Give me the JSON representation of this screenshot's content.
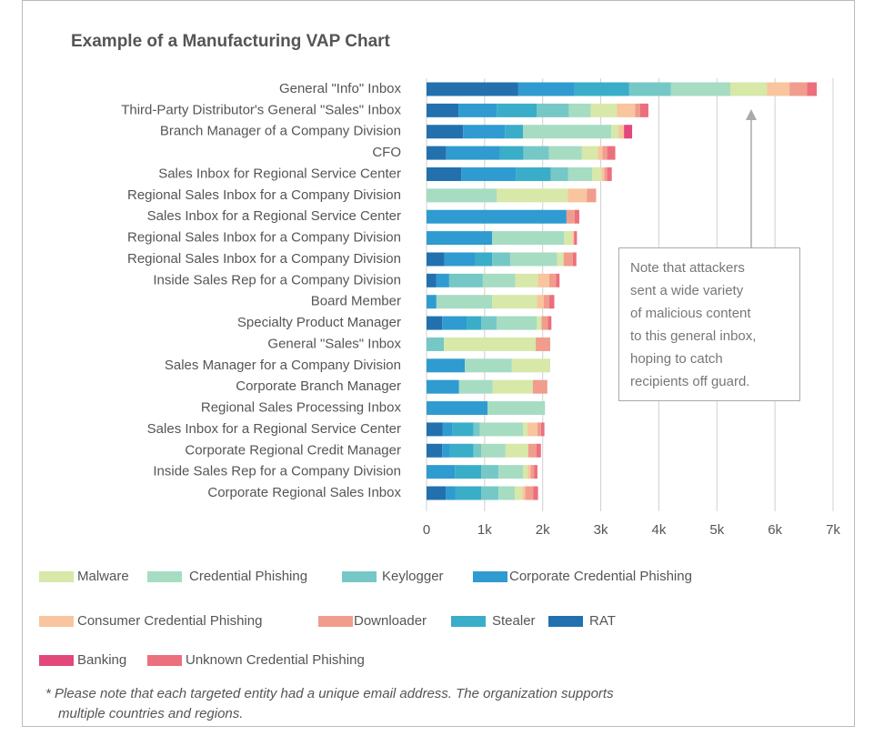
{
  "chart_data": {
    "type": "stacked_barh",
    "title": "Example of a Manufacturing VAP Chart",
    "categories": [
      "General \"Info\" Inbox",
      "Third-Party Distributor's General \"Sales\" Inbox",
      "Branch Manager of a Company Division",
      "CFO",
      "Sales Inbox for Regional Service Center",
      "Regional Sales Inbox for a Company Division",
      "Sales Inbox for a Regional Service Center",
      "Regional Sales Inbox for a Company Division",
      "Regional Sales Inbox for a Company Division",
      "Inside Sales Rep for a Company Division",
      "Board Member",
      "Specialty Product Manager",
      "General \"Sales\" Inbox",
      "Sales Manager for a Company Division",
      "Corporate Branch Manager",
      "Regional Sales Processing Inbox",
      "Sales Inbox for a Regional Service Center",
      "Corporate Regional Credit Manager",
      "Inside Sales Rep for a Company Division",
      "Corporate Regional Sales Inbox"
    ],
    "series": [
      {
        "name": "RAT",
        "color": "#2271ae",
        "values": [
          1580,
          550,
          630,
          340,
          600,
          0,
          0,
          0,
          310,
          170,
          0,
          270,
          0,
          0,
          0,
          0,
          280,
          270,
          0,
          330
        ]
      },
      {
        "name": "Corporate Credential Phishing",
        "color": "#2f9bd0",
        "values": [
          970,
          660,
          720,
          920,
          940,
          0,
          2410,
          1130,
          520,
          220,
          170,
          420,
          0,
          660,
          560,
          1050,
          170,
          130,
          490,
          170
        ]
      },
      {
        "name": "Stealer",
        "color": "#3aadc9",
        "values": [
          940,
          690,
          310,
          410,
          600,
          0,
          0,
          0,
          300,
          0,
          0,
          250,
          0,
          0,
          0,
          0,
          360,
          410,
          450,
          440
        ]
      },
      {
        "name": "Keylogger",
        "color": "#76c8c6",
        "values": [
          720,
          550,
          0,
          440,
          300,
          0,
          0,
          0,
          310,
          580,
          0,
          270,
          300,
          0,
          0,
          0,
          110,
          130,
          300,
          300
        ]
      },
      {
        "name": "Credential Phishing",
        "color": "#a6dcc2",
        "values": [
          1020,
          380,
          1520,
          560,
          410,
          1210,
          0,
          1240,
          810,
          560,
          960,
          690,
          0,
          810,
          580,
          990,
          740,
          420,
          420,
          280
        ]
      },
      {
        "name": "Malware",
        "color": "#d7e8a8",
        "values": [
          630,
          450,
          125,
          280,
          160,
          1220,
          0,
          140,
          110,
          390,
          770,
          80,
          1580,
          660,
          690,
          0,
          80,
          390,
          80,
          130
        ]
      },
      {
        "name": "Consumer Credential Phishing",
        "color": "#f8c59e",
        "values": [
          390,
          310,
          95,
          80,
          50,
          330,
          0,
          30,
          0,
          190,
          120,
          0,
          0,
          0,
          0,
          0,
          170,
          0,
          50,
          50
        ]
      },
      {
        "name": "Downloader",
        "color": "#f09d8d",
        "values": [
          300,
          90,
          0,
          80,
          50,
          160,
          140,
          0,
          160,
          120,
          90,
          110,
          250,
          0,
          250,
          0,
          60,
          140,
          60,
          140
        ]
      },
      {
        "name": "Unknown Credential Phishing",
        "color": "#ec6f7d",
        "values": [
          170,
          140,
          0,
          140,
          80,
          0,
          80,
          50,
          60,
          60,
          90,
          60,
          0,
          0,
          0,
          0,
          60,
          80,
          60,
          80
        ]
      },
      {
        "name": "Banking",
        "color": "#e2497a",
        "values": [
          0,
          0,
          140,
          0,
          0,
          0,
          0,
          0,
          0,
          0,
          0,
          0,
          0,
          0,
          0,
          0,
          0,
          0,
          0,
          0
        ]
      }
    ],
    "xlim": [
      0,
      7000
    ],
    "xticks": [
      0,
      {
        "value": 1000,
        "label": "1k"
      },
      {
        "value": 2000,
        "label": "2k"
      },
      {
        "value": 3000,
        "label": "3k"
      },
      {
        "value": 4000,
        "label": "4k"
      },
      {
        "value": 5000,
        "label": "5k"
      },
      {
        "value": 6000,
        "label": "6k"
      },
      {
        "value": 7000,
        "label": "7k"
      }
    ],
    "grid": true,
    "annotation": [
      "Note that attackers",
      "sent a wide variety",
      "of malicious content",
      "to this general inbox,",
      "hoping to catch",
      "recipients off guard."
    ],
    "footnote": [
      "* Please note that each targeted entity had a unique email address. The organization supports",
      "multiple countries and regions."
    ]
  }
}
